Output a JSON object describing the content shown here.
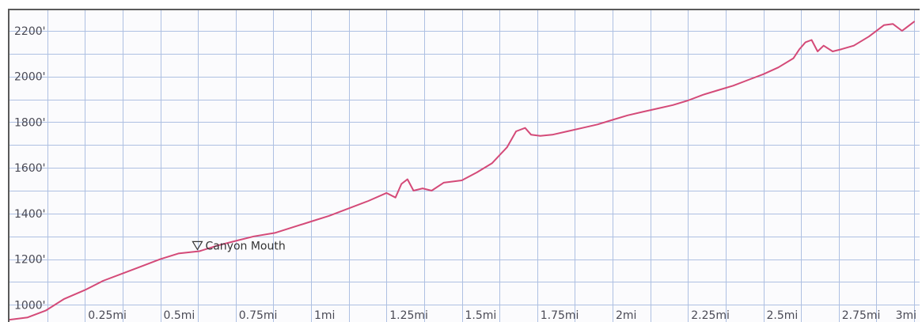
{
  "chart_data": {
    "type": "line",
    "title": "",
    "xlabel": "",
    "ylabel": "",
    "x_unit": "mi",
    "y_unit": "ft",
    "xlim": [
      0,
      3
    ],
    "ylim": [
      925,
      2290
    ],
    "grid": true,
    "x_ticks": [
      {
        "value": 0.125,
        "label": ""
      },
      {
        "value": 0.25,
        "label": "0.25mi"
      },
      {
        "value": 0.375,
        "label": ""
      },
      {
        "value": 0.5,
        "label": "0.5mi"
      },
      {
        "value": 0.625,
        "label": ""
      },
      {
        "value": 0.75,
        "label": "0.75mi"
      },
      {
        "value": 0.875,
        "label": ""
      },
      {
        "value": 1.0,
        "label": "1mi"
      },
      {
        "value": 1.125,
        "label": ""
      },
      {
        "value": 1.25,
        "label": "1.25mi"
      },
      {
        "value": 1.375,
        "label": ""
      },
      {
        "value": 1.5,
        "label": "1.5mi"
      },
      {
        "value": 1.625,
        "label": ""
      },
      {
        "value": 1.75,
        "label": "1.75mi"
      },
      {
        "value": 1.875,
        "label": ""
      },
      {
        "value": 2.0,
        "label": "2mi"
      },
      {
        "value": 2.125,
        "label": ""
      },
      {
        "value": 2.25,
        "label": "2.25mi"
      },
      {
        "value": 2.375,
        "label": ""
      },
      {
        "value": 2.5,
        "label": "2.5mi"
      },
      {
        "value": 2.625,
        "label": ""
      },
      {
        "value": 2.75,
        "label": "2.75mi"
      },
      {
        "value": 2.875,
        "label": ""
      },
      {
        "value": 3.0,
        "label": "3mi"
      }
    ],
    "y_ticks": [
      {
        "value": 1000,
        "label": "1000'"
      },
      {
        "value": 1100,
        "label": ""
      },
      {
        "value": 1200,
        "label": "1200'"
      },
      {
        "value": 1300,
        "label": ""
      },
      {
        "value": 1400,
        "label": "1400'"
      },
      {
        "value": 1500,
        "label": ""
      },
      {
        "value": 1600,
        "label": "1600'"
      },
      {
        "value": 1700,
        "label": ""
      },
      {
        "value": 1800,
        "label": "1800'"
      },
      {
        "value": 1900,
        "label": ""
      },
      {
        "value": 2000,
        "label": "2000'"
      },
      {
        "value": 2100,
        "label": ""
      },
      {
        "value": 2200,
        "label": "2200'"
      }
    ],
    "series": [
      {
        "color": "#d44a78",
        "x": [
          0.0,
          0.06,
          0.12,
          0.18,
          0.25,
          0.31,
          0.38,
          0.44,
          0.5,
          0.56,
          0.63,
          0.69,
          0.75,
          0.81,
          0.88,
          0.94,
          1.0,
          1.06,
          1.13,
          1.19,
          1.25,
          1.28,
          1.3,
          1.32,
          1.34,
          1.37,
          1.4,
          1.44,
          1.5,
          1.55,
          1.6,
          1.65,
          1.68,
          1.71,
          1.73,
          1.76,
          1.8,
          1.85,
          1.9,
          1.95,
          2.0,
          2.05,
          2.1,
          2.15,
          2.2,
          2.25,
          2.3,
          2.35,
          2.4,
          2.45,
          2.5,
          2.55,
          2.6,
          2.62,
          2.64,
          2.66,
          2.68,
          2.7,
          2.73,
          2.76,
          2.8,
          2.85,
          2.9,
          2.93,
          2.96,
          3.0
        ],
        "y": [
          935,
          945,
          975,
          1025,
          1065,
          1105,
          1140,
          1170,
          1200,
          1225,
          1235,
          1260,
          1280,
          1300,
          1315,
          1340,
          1365,
          1390,
          1425,
          1455,
          1490,
          1470,
          1530,
          1550,
          1500,
          1510,
          1500,
          1535,
          1545,
          1580,
          1620,
          1690,
          1760,
          1775,
          1745,
          1740,
          1745,
          1760,
          1775,
          1790,
          1810,
          1830,
          1845,
          1860,
          1875,
          1895,
          1920,
          1940,
          1960,
          1985,
          2010,
          2040,
          2080,
          2120,
          2150,
          2160,
          2110,
          2135,
          2110,
          2120,
          2135,
          2175,
          2225,
          2230,
          2200,
          2240
        ]
      }
    ],
    "annotations": [
      {
        "label": "Canyon Mouth",
        "x": 0.66,
        "y": 1232,
        "marker": "▽"
      }
    ]
  }
}
